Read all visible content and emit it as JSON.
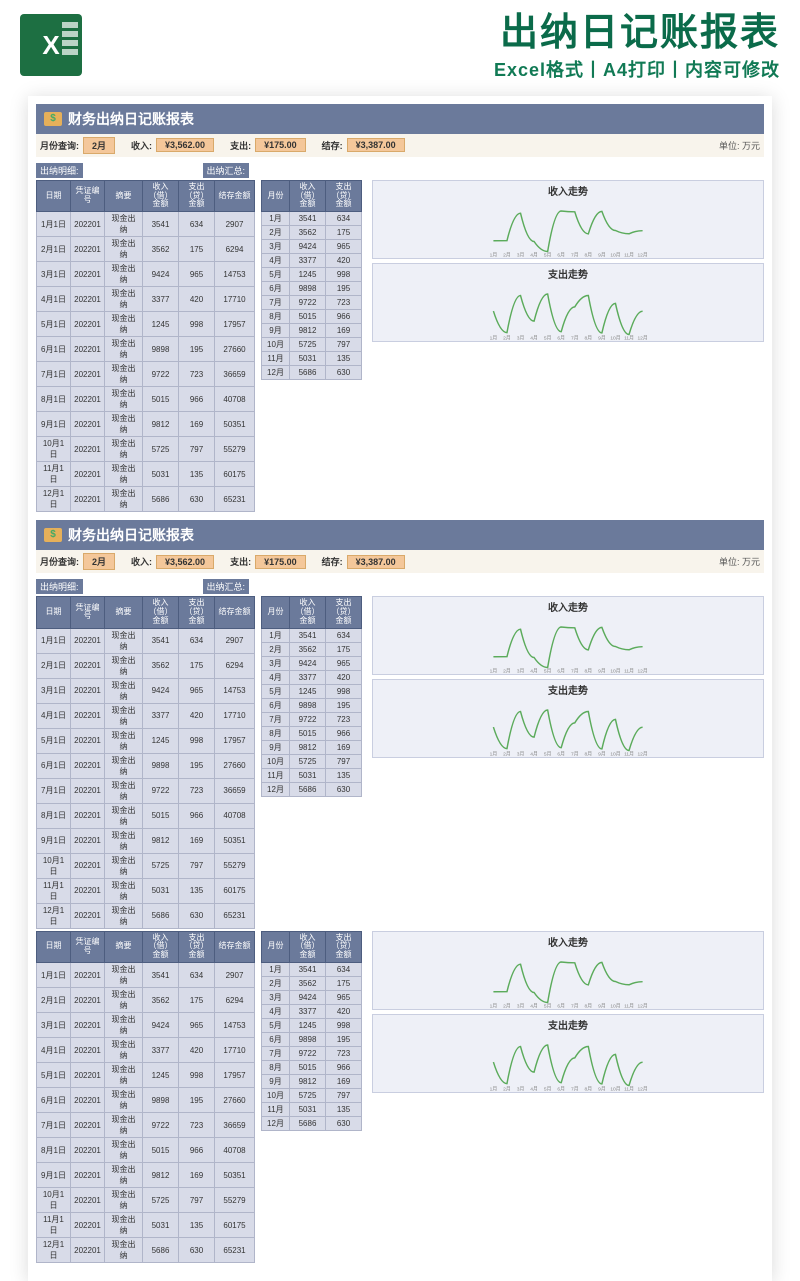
{
  "header": {
    "main_title": "出纳日记账报表",
    "sub_title": "Excel格式丨A4打印丨内容可修改",
    "excel_label": "X"
  },
  "block_title": "财务出纳日记账报表",
  "summary": {
    "month_label": "月份查询:",
    "month_value": "2月",
    "income_label": "收入:",
    "income_value": "¥3,562.00",
    "expense_label": "支出:",
    "expense_value": "¥175.00",
    "balance_label": "结存:",
    "balance_value": "¥3,387.00",
    "unit": "单位: 万元"
  },
  "detail_section_label": "出纳明细:",
  "summary_section_label": "出纳汇总:",
  "detail_headers": [
    "日期",
    "凭证编号",
    "摘要",
    "收入（借）金额",
    "支出（贷）金额",
    "结存金额"
  ],
  "sum_headers": [
    "月份",
    "收入（借）金额",
    "支出（贷）金额"
  ],
  "detail_rows": [
    [
      "1月1日",
      "202201",
      "现金出纳",
      "3541",
      "634",
      "2907"
    ],
    [
      "2月1日",
      "202201",
      "现金出纳",
      "3562",
      "175",
      "6294"
    ],
    [
      "3月1日",
      "202201",
      "现金出纳",
      "9424",
      "965",
      "14753"
    ],
    [
      "4月1日",
      "202201",
      "现金出纳",
      "3377",
      "420",
      "17710"
    ],
    [
      "5月1日",
      "202201",
      "现金出纳",
      "1245",
      "998",
      "17957"
    ],
    [
      "6月1日",
      "202201",
      "现金出纳",
      "9898",
      "195",
      "27660"
    ],
    [
      "7月1日",
      "202201",
      "现金出纳",
      "9722",
      "723",
      "36659"
    ],
    [
      "8月1日",
      "202201",
      "现金出纳",
      "5015",
      "966",
      "40708"
    ],
    [
      "9月1日",
      "202201",
      "现金出纳",
      "9812",
      "169",
      "50351"
    ],
    [
      "10月1日",
      "202201",
      "现金出纳",
      "5725",
      "797",
      "55279"
    ],
    [
      "11月1日",
      "202201",
      "现金出纳",
      "5031",
      "135",
      "60175"
    ],
    [
      "12月1日",
      "202201",
      "现金出纳",
      "5686",
      "630",
      "65231"
    ]
  ],
  "sum_rows": [
    [
      "1月",
      "3541",
      "634"
    ],
    [
      "2月",
      "3562",
      "175"
    ],
    [
      "3月",
      "9424",
      "965"
    ],
    [
      "4月",
      "3377",
      "420"
    ],
    [
      "5月",
      "1245",
      "998"
    ],
    [
      "6月",
      "9898",
      "195"
    ],
    [
      "7月",
      "9722",
      "723"
    ],
    [
      "8月",
      "5015",
      "966"
    ],
    [
      "9月",
      "9812",
      "169"
    ],
    [
      "10月",
      "5725",
      "797"
    ],
    [
      "11月",
      "5031",
      "135"
    ],
    [
      "12月",
      "5686",
      "630"
    ]
  ],
  "chart_income_title": "收入走势",
  "chart_expense_title": "支出走势",
  "chart_x_labels": [
    "1月",
    "2月",
    "3月",
    "4月",
    "5月",
    "6月",
    "7月",
    "8月",
    "9月",
    "10月",
    "11月",
    "12月"
  ],
  "income_series": [
    3541,
    3562,
    9424,
    3377,
    1245,
    9898,
    9722,
    5015,
    9812,
    5725,
    5031,
    5686
  ],
  "expense_series": [
    634,
    175,
    965,
    420,
    998,
    195,
    723,
    966,
    169,
    797,
    135,
    630
  ],
  "colors": {
    "header_green": "#0b6b4a",
    "bar_bg": "#6b7a9b",
    "cell_bg": "#d8dbe8",
    "pill_bg": "#f4c79a",
    "line_color": "#5bab5b"
  }
}
